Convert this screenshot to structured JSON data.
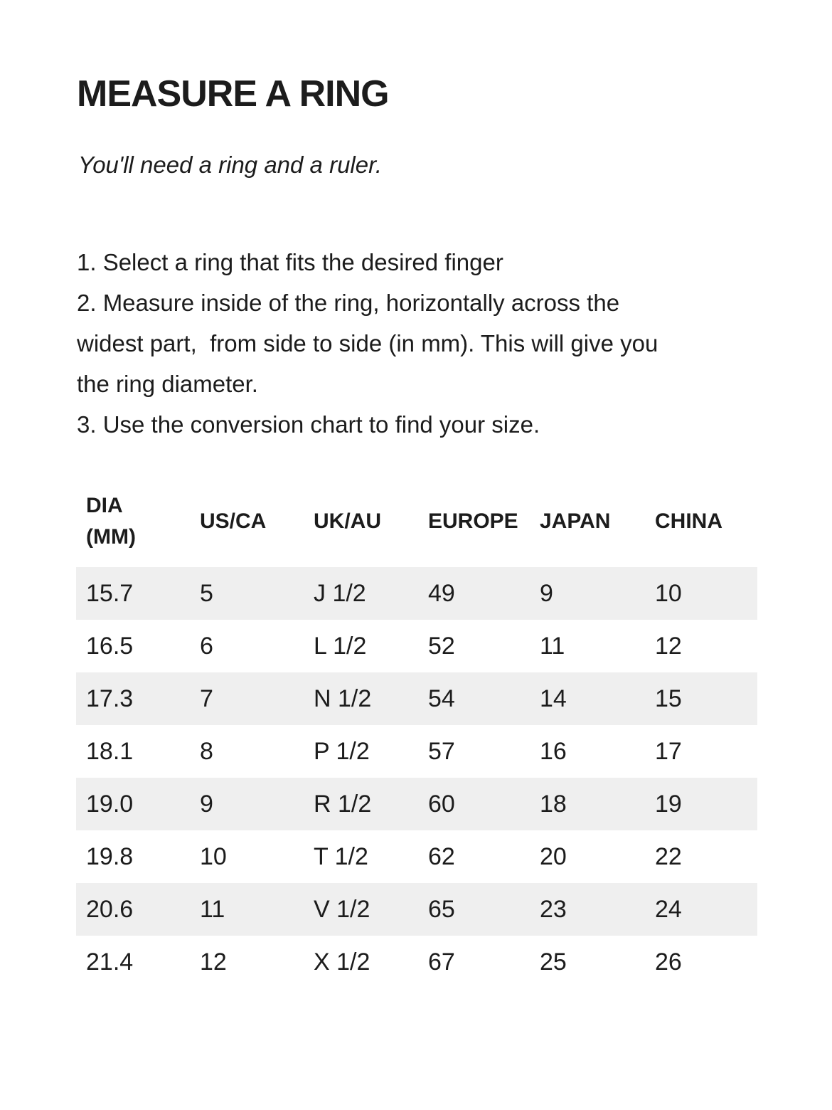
{
  "title": "MEASURE A RING",
  "subtitle": "You'll need a ring and a ruler.",
  "instructions": [
    {
      "lines": [
        "1. Select a ring that fits the desired finger"
      ]
    },
    {
      "lines": [
        "2. Measure inside of the ring, horizontally across the",
        "widest part,  from side to side (in mm). This will give you",
        "the ring diameter."
      ]
    },
    {
      "lines": [
        "3. Use the conversion chart to find your size."
      ]
    }
  ],
  "size_chart": {
    "headers": [
      "DIA\n(MM)",
      "US/CA",
      "UK/AU",
      "EUROPE",
      "JAPAN",
      "CHINA"
    ],
    "rows": [
      [
        "15.7",
        "5",
        "J 1/2",
        "49",
        "9",
        "10"
      ],
      [
        "16.5",
        "6",
        "L 1/2",
        "52",
        "11",
        "12"
      ],
      [
        "17.3",
        "7",
        "N 1/2",
        "54",
        "14",
        "15"
      ],
      [
        "18.1",
        "8",
        "P 1/2",
        "57",
        "16",
        "17"
      ],
      [
        "19.0",
        "9",
        "R 1/2",
        "60",
        "18",
        "19"
      ],
      [
        "19.8",
        "10",
        "T 1/2",
        "62",
        "20",
        "22"
      ],
      [
        "20.6",
        "11",
        "V 1/2",
        "65",
        "23",
        "24"
      ],
      [
        "21.4",
        "12",
        "X 1/2",
        "67",
        "25",
        "26"
      ]
    ]
  },
  "colors": {
    "text": "#1c1c1c",
    "row_stripe": "#efefef",
    "background": "#ffffff"
  }
}
